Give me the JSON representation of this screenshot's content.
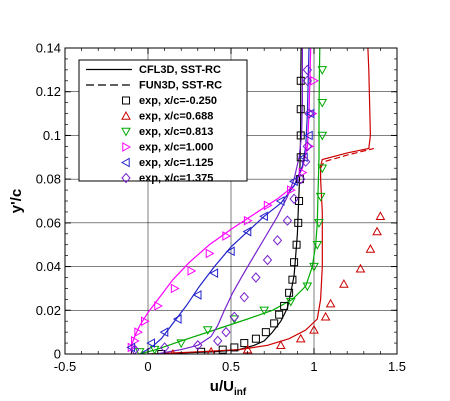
{
  "chart_data": {
    "type": "line",
    "xlabel": "u/U",
    "xlabel_sub": "inf",
    "ylabel": "y'/c",
    "xlim": [
      -0.5,
      1.5
    ],
    "ylim": [
      0,
      0.14
    ],
    "xticks": [
      -0.5,
      0,
      0.5,
      1,
      1.5
    ],
    "xtick_labels": [
      "-0.5",
      "0",
      "0.5",
      "1",
      "1.5"
    ],
    "yticks": [
      0,
      0.02,
      0.04,
      0.06,
      0.08,
      0.1,
      0.12,
      0.14
    ],
    "ytick_labels": [
      "0",
      "0.02",
      "0.04",
      "0.06",
      "0.08",
      "0.1",
      "0.12",
      "0.14"
    ],
    "grid": true,
    "legend_position": "top-left",
    "line_legend": [
      {
        "label": "CFL3D, SST-RC",
        "dash": "solid"
      },
      {
        "label": "FUN3D, SST-RC",
        "dash": "dashed"
      }
    ],
    "series": [
      {
        "name": "exp, x/c=-0.250",
        "color": "#000000",
        "marker": "square",
        "points": [
          [
            0.08,
            0.0
          ],
          [
            0.32,
            0.001
          ],
          [
            0.45,
            0.002
          ],
          [
            0.52,
            0.003
          ],
          [
            0.58,
            0.005
          ],
          [
            0.65,
            0.007
          ],
          [
            0.71,
            0.01
          ],
          [
            0.76,
            0.014
          ],
          [
            0.79,
            0.018
          ],
          [
            0.82,
            0.022
          ],
          [
            0.85,
            0.028
          ],
          [
            0.87,
            0.034
          ],
          [
            0.88,
            0.042
          ],
          [
            0.895,
            0.05
          ],
          [
            0.905,
            0.06
          ],
          [
            0.91,
            0.07
          ],
          [
            0.915,
            0.08
          ],
          [
            0.92,
            0.09
          ],
          [
            0.92,
            0.1
          ],
          [
            0.92,
            0.112
          ],
          [
            0.92,
            0.125
          ]
        ],
        "lines": [
          {
            "dash": "solid",
            "points": [
              [
                0.0,
                0.0
              ],
              [
                0.4,
                0.001
              ],
              [
                0.55,
                0.002
              ],
              [
                0.64,
                0.004
              ],
              [
                0.7,
                0.006
              ],
              [
                0.75,
                0.01
              ],
              [
                0.8,
                0.015
              ],
              [
                0.84,
                0.021
              ],
              [
                0.86,
                0.028
              ],
              [
                0.88,
                0.036
              ],
              [
                0.89,
                0.045
              ],
              [
                0.9,
                0.055
              ],
              [
                0.905,
                0.065
              ],
              [
                0.91,
                0.075
              ],
              [
                0.915,
                0.085
              ],
              [
                0.918,
                0.095
              ],
              [
                0.92,
                0.11
              ],
              [
                0.92,
                0.125
              ],
              [
                0.922,
                0.14
              ]
            ]
          }
        ]
      },
      {
        "name": "exp, x/c=0.688",
        "color": "#cc0000",
        "marker": "triangle-up",
        "points": [
          [
            0.15,
            0.0
          ],
          [
            0.38,
            0.001
          ],
          [
            0.6,
            0.002
          ],
          [
            0.8,
            0.004
          ],
          [
            0.92,
            0.007
          ],
          [
            1.0,
            0.011
          ],
          [
            1.07,
            0.017
          ],
          [
            1.1,
            0.023
          ],
          [
            1.18,
            0.032
          ],
          [
            1.28,
            0.039
          ],
          [
            1.34,
            0.048
          ],
          [
            1.38,
            0.056
          ],
          [
            1.4,
            0.063
          ]
        ],
        "lines": [
          {
            "dash": "solid",
            "points": [
              [
                0.02,
                0.0
              ],
              [
                0.3,
                0.001
              ],
              [
                0.55,
                0.002
              ],
              [
                0.72,
                0.004
              ],
              [
                0.85,
                0.007
              ],
              [
                0.95,
                0.011
              ],
              [
                1.02,
                0.016
              ],
              [
                1.04,
                0.025
              ],
              [
                1.05,
                0.04
              ],
              [
                1.05,
                0.055
              ],
              [
                1.05,
                0.065
              ],
              [
                1.045,
                0.072
              ],
              [
                1.04,
                0.08
              ],
              [
                1.04,
                0.086
              ],
              [
                1.05,
                0.089
              ],
              [
                1.2,
                0.092
              ],
              [
                1.33,
                0.094
              ],
              [
                1.34,
                0.1
              ],
              [
                1.335,
                0.115
              ],
              [
                1.33,
                0.13
              ],
              [
                1.325,
                0.14
              ]
            ]
          },
          {
            "dash": "dashed",
            "points": [
              [
                1.04,
                0.085
              ],
              [
                1.06,
                0.088
              ],
              [
                1.2,
                0.091
              ],
              [
                1.36,
                0.094
              ]
            ]
          }
        ]
      },
      {
        "name": "exp, x/c=0.813",
        "color": "#00aa00",
        "marker": "triangle-down",
        "points": [
          [
            -0.05,
            0.001
          ],
          [
            0.04,
            0.002
          ],
          [
            0.2,
            0.005
          ],
          [
            0.36,
            0.011
          ],
          [
            0.52,
            0.016
          ],
          [
            0.7,
            0.02
          ],
          [
            0.86,
            0.024
          ],
          [
            0.96,
            0.031
          ],
          [
            1.0,
            0.04
          ],
          [
            1.02,
            0.05
          ],
          [
            1.03,
            0.06
          ],
          [
            1.04,
            0.072
          ],
          [
            1.05,
            0.085
          ],
          [
            1.05,
            0.1
          ],
          [
            1.05,
            0.115
          ],
          [
            1.05,
            0.13
          ]
        ],
        "lines": [
          {
            "dash": "solid",
            "points": [
              [
                -0.05,
                0.0
              ],
              [
                0.05,
                0.002
              ],
              [
                0.2,
                0.006
              ],
              [
                0.4,
                0.011
              ],
              [
                0.6,
                0.016
              ],
              [
                0.75,
                0.02
              ],
              [
                0.87,
                0.025
              ],
              [
                0.95,
                0.031
              ],
              [
                0.99,
                0.04
              ],
              [
                1.01,
                0.05
              ],
              [
                1.02,
                0.06
              ],
              [
                1.025,
                0.075
              ],
              [
                1.03,
                0.09
              ],
              [
                1.03,
                0.11
              ],
              [
                1.032,
                0.125
              ],
              [
                1.035,
                0.14
              ]
            ]
          }
        ]
      },
      {
        "name": "exp, x/c=1.000",
        "color": "#ff00ff",
        "marker": "triangle-right",
        "points": [
          [
            -0.1,
            0.003
          ],
          [
            -0.08,
            0.006
          ],
          [
            -0.06,
            0.01
          ],
          [
            -0.02,
            0.015
          ],
          [
            0.06,
            0.022
          ],
          [
            0.16,
            0.03
          ],
          [
            0.26,
            0.038
          ],
          [
            0.37,
            0.046
          ],
          [
            0.47,
            0.054
          ],
          [
            0.6,
            0.061
          ],
          [
            0.72,
            0.068
          ],
          [
            0.86,
            0.075
          ],
          [
            0.93,
            0.083
          ],
          [
            0.97,
            0.095
          ],
          [
            0.99,
            0.11
          ],
          [
            1.0,
            0.125
          ]
        ],
        "lines": [
          {
            "dash": "solid",
            "points": [
              [
                -0.1,
                0.0
              ],
              [
                -0.1,
                0.004
              ],
              [
                -0.08,
                0.008
              ],
              [
                -0.05,
                0.013
              ],
              [
                0.0,
                0.019
              ],
              [
                0.06,
                0.025
              ],
              [
                0.15,
                0.034
              ],
              [
                0.25,
                0.042
              ],
              [
                0.37,
                0.05
              ],
              [
                0.5,
                0.057
              ],
              [
                0.64,
                0.064
              ],
              [
                0.78,
                0.071
              ],
              [
                0.88,
                0.077
              ],
              [
                0.93,
                0.085
              ],
              [
                0.96,
                0.095
              ],
              [
                0.97,
                0.11
              ],
              [
                0.975,
                0.125
              ],
              [
                0.98,
                0.14
              ]
            ]
          }
        ]
      },
      {
        "name": "exp, x/c=1.125",
        "color": "#2222cc",
        "marker": "triangle-left",
        "points": [
          [
            -0.1,
            0.003
          ],
          [
            0.02,
            0.005
          ],
          [
            0.1,
            0.01
          ],
          [
            0.18,
            0.016
          ],
          [
            0.3,
            0.027
          ],
          [
            0.4,
            0.037
          ],
          [
            0.5,
            0.047
          ],
          [
            0.6,
            0.056
          ],
          [
            0.7,
            0.063
          ],
          [
            0.8,
            0.07
          ],
          [
            0.88,
            0.079
          ],
          [
            0.94,
            0.09
          ],
          [
            0.97,
            0.1
          ],
          [
            0.98,
            0.11
          ]
        ],
        "lines": [
          {
            "dash": "solid",
            "points": [
              [
                -0.05,
                0.0
              ],
              [
                0.02,
                0.003
              ],
              [
                0.08,
                0.007
              ],
              [
                0.15,
                0.014
              ],
              [
                0.23,
                0.022
              ],
              [
                0.31,
                0.031
              ],
              [
                0.4,
                0.04
              ],
              [
                0.5,
                0.049
              ],
              [
                0.6,
                0.056
              ],
              [
                0.7,
                0.063
              ],
              [
                0.8,
                0.069
              ],
              [
                0.88,
                0.077
              ],
              [
                0.93,
                0.086
              ],
              [
                0.95,
                0.095
              ],
              [
                0.96,
                0.11
              ],
              [
                0.965,
                0.125
              ],
              [
                0.97,
                0.14
              ]
            ]
          }
        ]
      },
      {
        "name": "exp, x/c=1.375",
        "color": "#7722cc",
        "marker": "diamond",
        "points": [
          [
            -0.08,
            0.002
          ],
          [
            0.1,
            0.003
          ],
          [
            0.3,
            0.004
          ],
          [
            0.42,
            0.006
          ],
          [
            0.47,
            0.01
          ],
          [
            0.52,
            0.017
          ],
          [
            0.58,
            0.026
          ],
          [
            0.65,
            0.035
          ],
          [
            0.72,
            0.043
          ],
          [
            0.78,
            0.052
          ],
          [
            0.84,
            0.061
          ],
          [
            0.88,
            0.071
          ],
          [
            0.92,
            0.08
          ],
          [
            0.95,
            0.088
          ],
          [
            0.96,
            0.095
          ],
          [
            0.97,
            0.11
          ],
          [
            0.96,
            0.125
          ],
          [
            0.96,
            0.13
          ]
        ],
        "lines": [
          {
            "dash": "solid",
            "points": [
              [
                0.05,
                0.0
              ],
              [
                0.2,
                0.002
              ],
              [
                0.3,
                0.004
              ],
              [
                0.38,
                0.008
              ],
              [
                0.42,
                0.013
              ],
              [
                0.46,
                0.02
              ],
              [
                0.51,
                0.028
              ],
              [
                0.57,
                0.036
              ],
              [
                0.64,
                0.045
              ],
              [
                0.71,
                0.054
              ],
              [
                0.78,
                0.063
              ],
              [
                0.84,
                0.072
              ],
              [
                0.88,
                0.08
              ],
              [
                0.91,
                0.09
              ],
              [
                0.925,
                0.1
              ],
              [
                0.93,
                0.115
              ],
              [
                0.93,
                0.13
              ],
              [
                0.93,
                0.14
              ]
            ]
          }
        ]
      }
    ]
  }
}
